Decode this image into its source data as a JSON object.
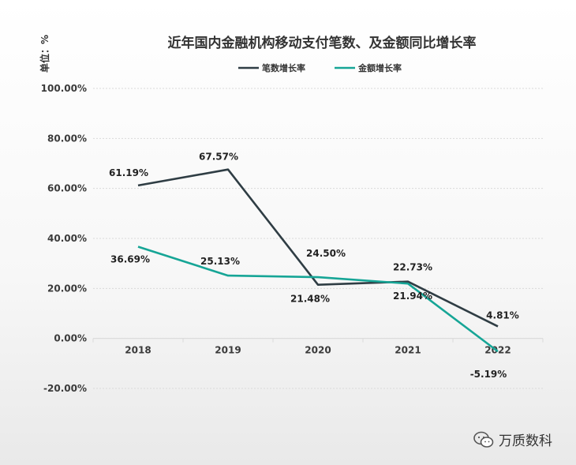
{
  "unit_label": "单位：%",
  "watermark": "万质数科",
  "colors": {
    "count_series": "#2f3d44",
    "amount_series": "#16a596",
    "grid": "#d9d9d9",
    "axis_text": "#3a3a3a",
    "title": "#333333"
  },
  "chart_data": {
    "type": "line",
    "title": "近年国内金融机构移动支付笔数、及金额同比增长率",
    "categories": [
      "2018",
      "2019",
      "2020",
      "2021",
      "2022"
    ],
    "ylim": [
      -20,
      100
    ],
    "yticks": [
      "100.00%",
      "80.00%",
      "60.00%",
      "40.00%",
      "20.00%",
      "0.00%",
      "-20.00%"
    ],
    "ytick_values": [
      100,
      80,
      60,
      40,
      20,
      0,
      -20
    ],
    "grid": true,
    "legend_position": "top-center",
    "series": [
      {
        "name": "笔数增长率",
        "values": [
          61.19,
          67.57,
          21.48,
          22.73,
          4.81
        ],
        "labels": [
          "61.19%",
          "67.57%",
          "21.48%",
          "22.73%",
          "4.81%"
        ]
      },
      {
        "name": "金额增长率",
        "values": [
          36.69,
          25.13,
          24.5,
          21.94,
          -5.19
        ],
        "labels": [
          "36.69%",
          "25.13%",
          "24.50%",
          "21.94%",
          "-5.19%"
        ]
      }
    ]
  }
}
